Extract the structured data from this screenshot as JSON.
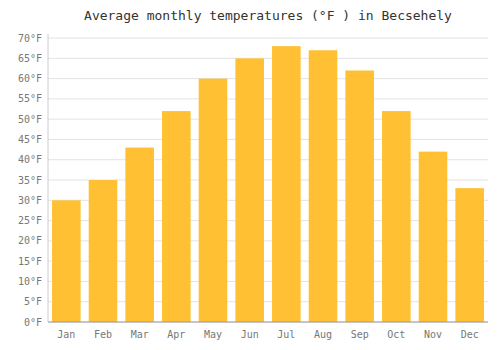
{
  "chart_data": {
    "type": "bar",
    "title": "Average monthly temperatures (°F ) in Becsehely",
    "categories": [
      "Jan",
      "Feb",
      "Mar",
      "Apr",
      "May",
      "Jun",
      "Jul",
      "Aug",
      "Sep",
      "Oct",
      "Nov",
      "Dec"
    ],
    "values": [
      30,
      35,
      43,
      52,
      60,
      65,
      68,
      67,
      62,
      52,
      42,
      33
    ],
    "color": "#FFC033",
    "ylim": [
      0,
      71
    ],
    "yticks": [
      {
        "value": 0,
        "label": "0°F"
      },
      {
        "value": 5,
        "label": "5°F"
      },
      {
        "value": 10,
        "label": "10°F"
      },
      {
        "value": 15,
        "label": "15°F"
      },
      {
        "value": 20,
        "label": "20°F"
      },
      {
        "value": 25,
        "label": "25°F"
      },
      {
        "value": 30,
        "label": "30°F"
      },
      {
        "value": 35,
        "label": "35°F"
      },
      {
        "value": 40,
        "label": "40°F"
      },
      {
        "value": 45,
        "label": "45°F"
      },
      {
        "value": 50,
        "label": "50°F"
      },
      {
        "value": 55,
        "label": "55°F"
      },
      {
        "value": 60,
        "label": "60°F"
      },
      {
        "value": 65,
        "label": "65°F"
      },
      {
        "value": 70,
        "label": "70°F"
      }
    ],
    "grid": true
  }
}
